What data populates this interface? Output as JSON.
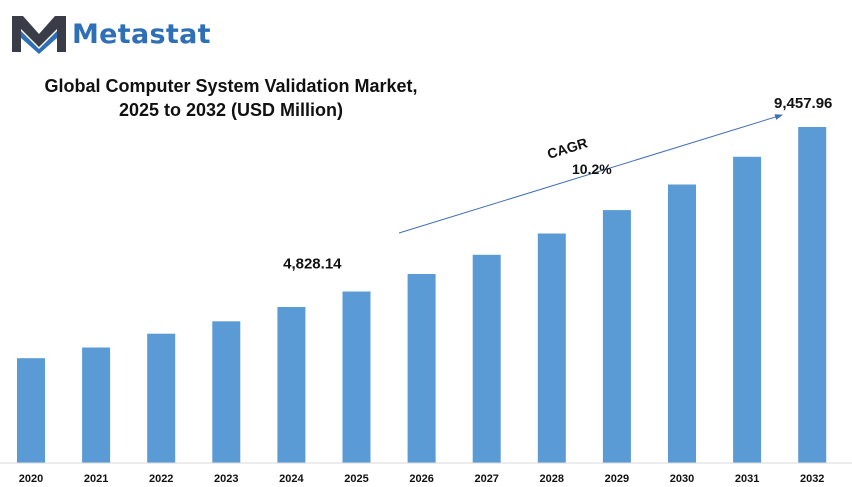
{
  "brand": {
    "name": "Metastat",
    "logo_icon": "metastat-m-logo-icon",
    "colors": {
      "dark": "#3a3d48",
      "blue": "#2f6fb6"
    }
  },
  "title_lines": [
    "Global Computer System Validation Market,",
    "2025 to 2032 (USD Million)"
  ],
  "colors": {
    "bar": "#5b9bd5",
    "arrow": "#3f6fb6",
    "text": "#111111"
  },
  "chart_data": {
    "type": "bar",
    "title": "Global Computer System Validation Market, 2025 to 2032 (USD Million)",
    "categories": [
      "2020",
      "2021",
      "2022",
      "2023",
      "2024",
      "2025",
      "2026",
      "2027",
      "2028",
      "2029",
      "2030",
      "2031",
      "2032"
    ],
    "values": [
      2950,
      3250,
      3640,
      3990,
      4390,
      4828.14,
      5320,
      5860,
      6460,
      7120,
      7840,
      8620,
      9457.96
    ],
    "data_labels": [
      {
        "category": "2025",
        "text": "4,828.14"
      },
      {
        "category": "2032",
        "text": "9,457.96"
      }
    ],
    "annotation": {
      "label": "CAGR",
      "value": "10.2%"
    },
    "ylim": [
      0,
      9457.96
    ],
    "grid": false,
    "legend": "none"
  }
}
